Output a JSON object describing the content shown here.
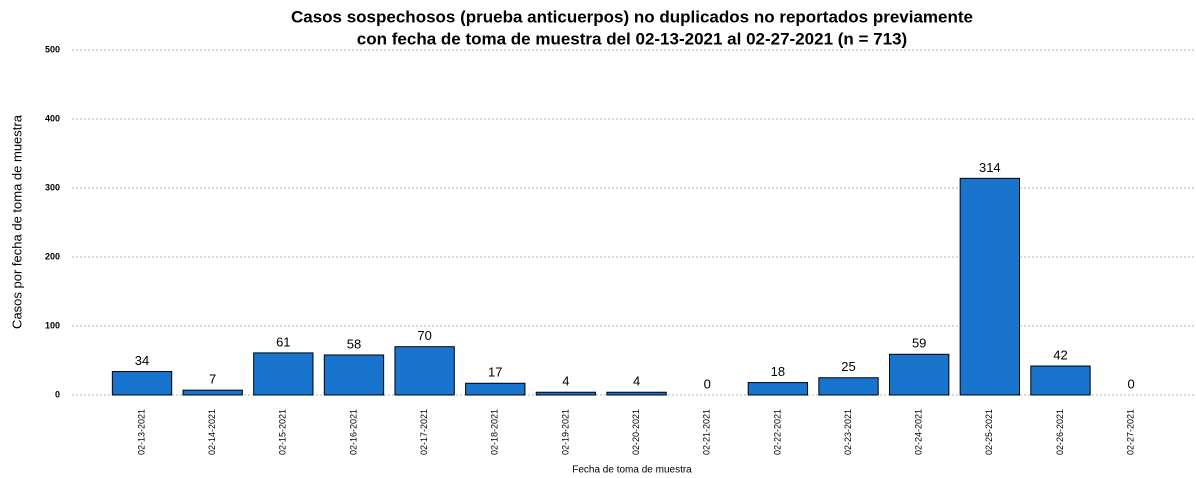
{
  "chart_data": {
    "type": "bar",
    "title": [
      "Casos sospechosos (prueba anticuerpos) no duplicados no reportados previamente",
      "con fecha de toma de muestra del 02-13-2021 al 02-27-2021 (n = 713)"
    ],
    "x_label": "Fecha de toma de muestra",
    "y_label": "Casos por fecha de toma de muestra",
    "categories": [
      "02-13-2021",
      "02-14-2021",
      "02-15-2021",
      "02-16-2021",
      "02-17-2021",
      "02-18-2021",
      "02-19-2021",
      "02-20-2021",
      "02-21-2021",
      "02-22-2021",
      "02-23-2021",
      "02-24-2021",
      "02-25-2021",
      "02-26-2021",
      "02-27-2021"
    ],
    "values": [
      34,
      7,
      61,
      58,
      70,
      17,
      4,
      4,
      0,
      18,
      25,
      59,
      314,
      42,
      0
    ],
    "color": "#1874cd",
    "ylim": [
      0,
      500
    ],
    "yticks": [
      0,
      100,
      200,
      300,
      400,
      500
    ],
    "grid": true
  }
}
